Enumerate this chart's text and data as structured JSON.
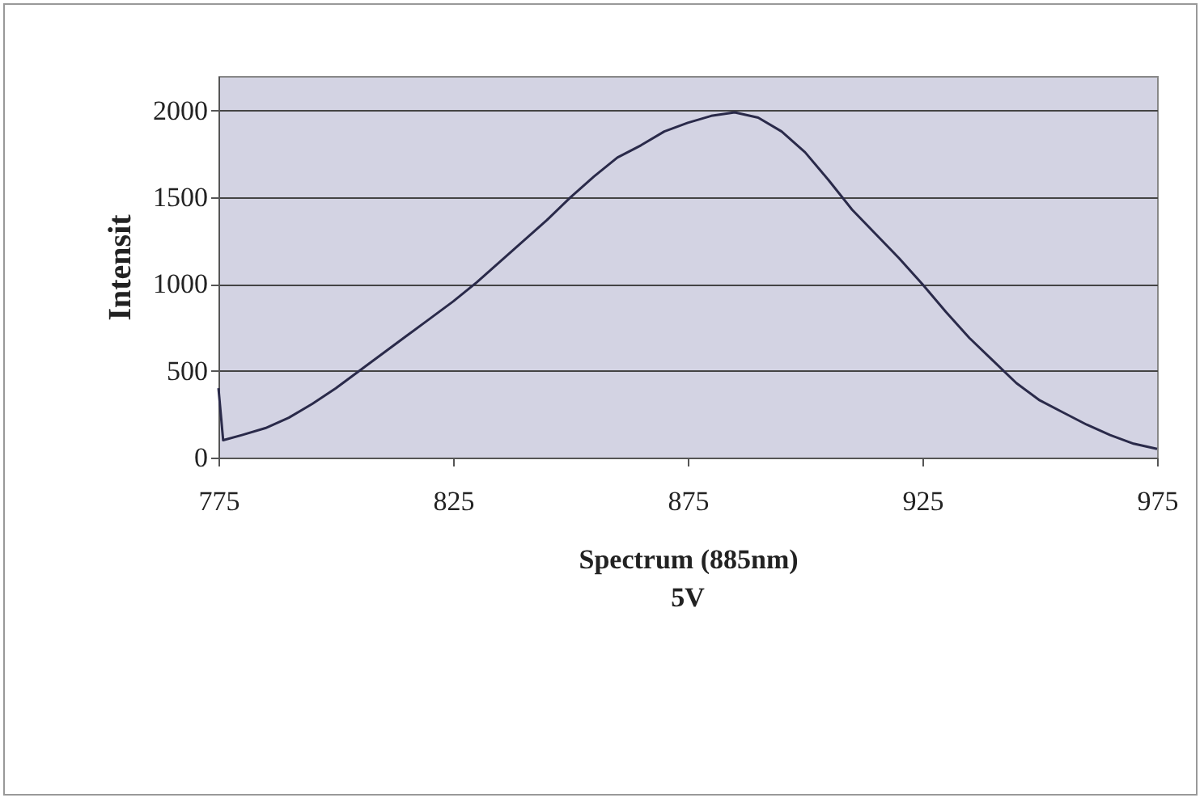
{
  "chart_data": {
    "type": "line",
    "xlabel": "Spectrum (885nm)",
    "ylabel": "Intensit",
    "annotations": [
      "5V"
    ],
    "x": [
      775,
      776,
      780,
      785,
      790,
      795,
      800,
      805,
      810,
      815,
      820,
      825,
      830,
      835,
      840,
      845,
      850,
      855,
      860,
      865,
      870,
      875,
      880,
      885,
      890,
      895,
      900,
      905,
      910,
      915,
      920,
      925,
      930,
      935,
      940,
      945,
      950,
      955,
      960,
      965,
      970,
      975
    ],
    "series": [
      {
        "color": "#2a2a4a",
        "values": [
          400,
          100,
          130,
          170,
          230,
          310,
          400,
          500,
          600,
          700,
          800,
          900,
          1010,
          1130,
          1250,
          1370,
          1500,
          1620,
          1730,
          1800,
          1880,
          1930,
          1970,
          1990,
          1960,
          1880,
          1760,
          1600,
          1430,
          1290,
          1150,
          1000,
          840,
          690,
          560,
          430,
          330,
          260,
          190,
          130,
          80,
          50
        ]
      }
    ],
    "xlim": [
      775,
      975
    ],
    "xticks": [
      775,
      825,
      875,
      925,
      975
    ],
    "ylim": [
      0,
      2200
    ],
    "yticks": [
      0,
      500,
      1000,
      1500,
      2000
    ],
    "grid": "y",
    "marker": "none",
    "line_style": "solid"
  }
}
